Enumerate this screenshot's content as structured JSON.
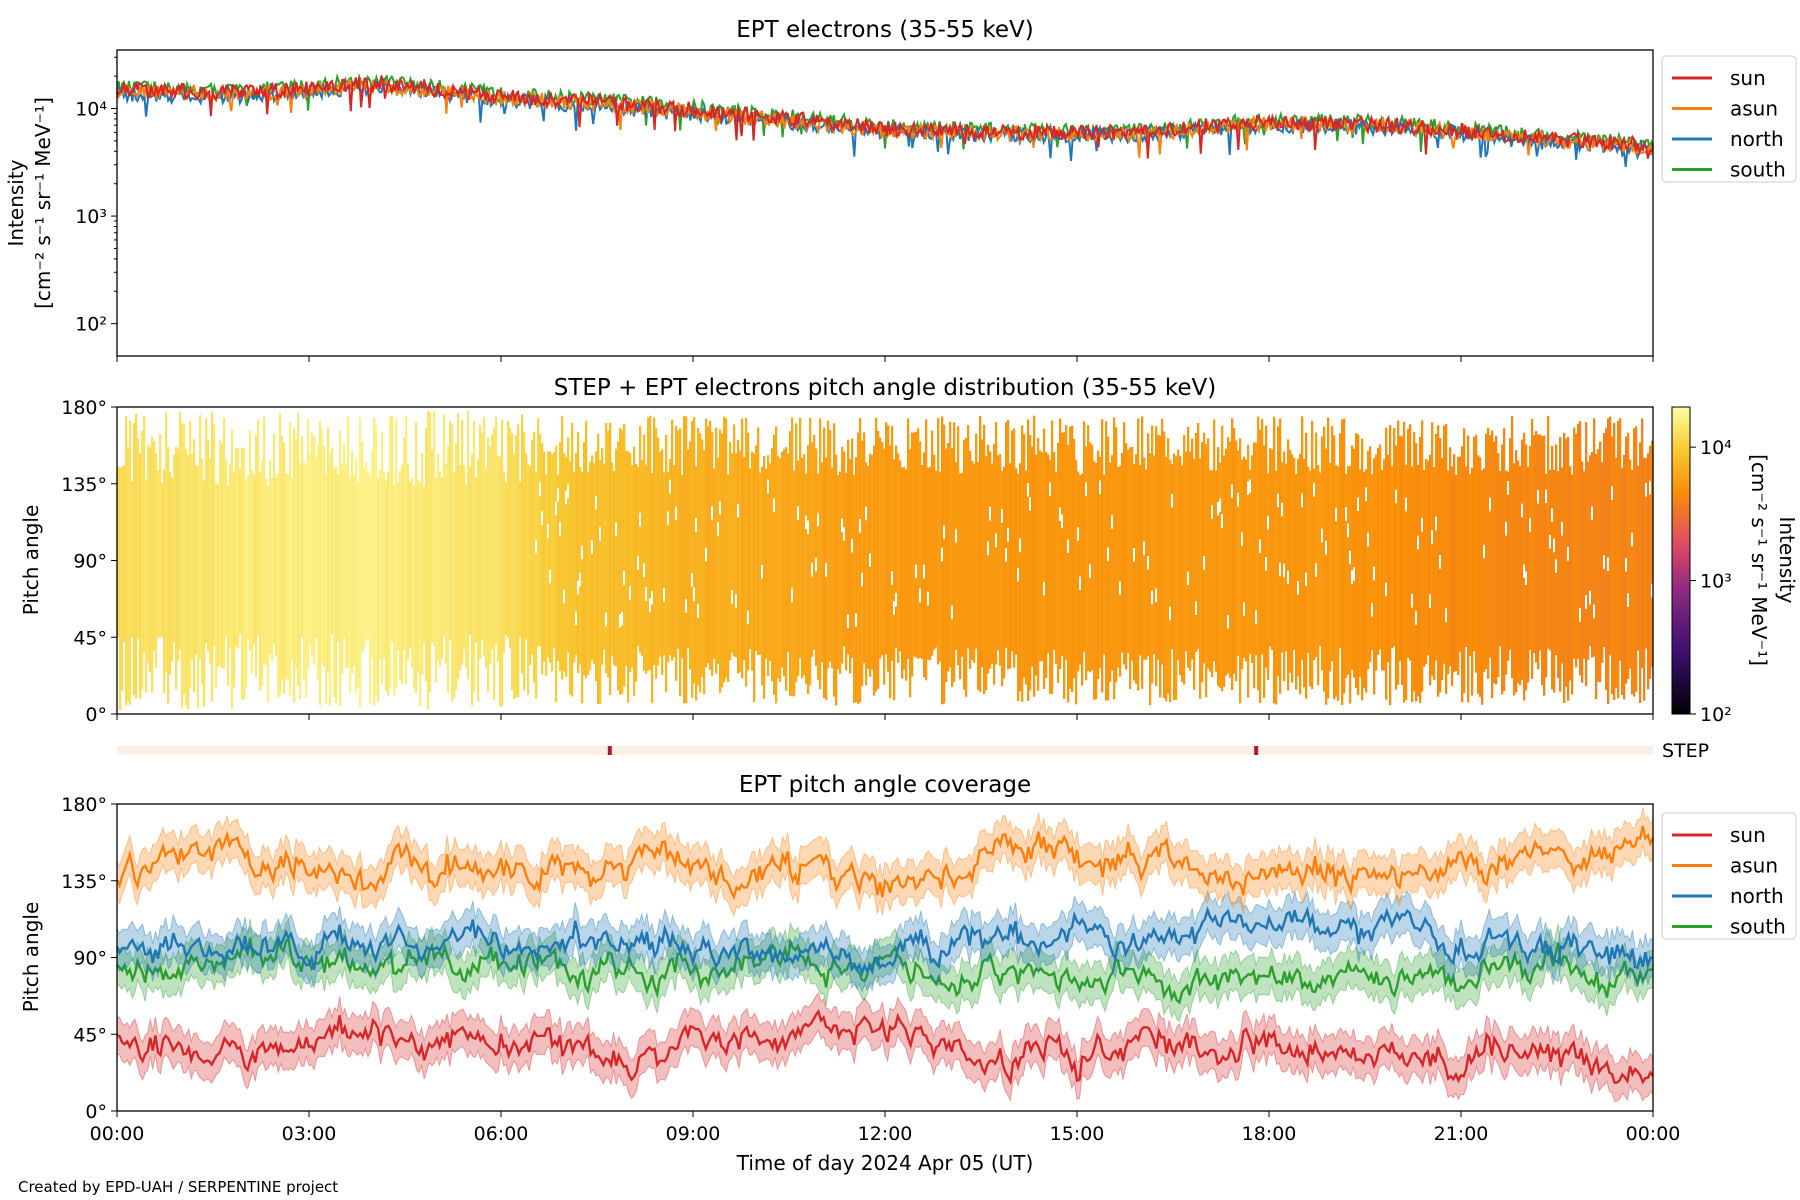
{
  "chart_data": [
    {
      "type": "line",
      "title": "EPT electrons (35-55 keV)",
      "ylabel": "Intensity",
      "ylabel_units": "[cm⁻² s⁻¹ sr⁻¹ MeV⁻¹]",
      "yscale": "log",
      "ylim": [
        50,
        35000
      ],
      "yticks": [
        "10²",
        "10³",
        "10⁴"
      ],
      "xlim_hours": [
        0,
        24
      ],
      "legend_position": "outside-right",
      "series": [
        {
          "name": "sun",
          "color": "#d62728",
          "x_hours": [
            0,
            2,
            4,
            6,
            8,
            10,
            12,
            14,
            16,
            18,
            20,
            22,
            24
          ],
          "values": [
            15000,
            14000,
            17000,
            13000,
            11000,
            8500,
            6500,
            6000,
            6000,
            7500,
            7000,
            5500,
            4500
          ]
        },
        {
          "name": "asun",
          "color": "#ff7f0e",
          "x_hours": [
            0,
            2,
            4,
            6,
            8,
            10,
            12,
            14,
            16,
            18,
            20,
            22,
            24
          ],
          "values": [
            14500,
            13500,
            16500,
            12500,
            10500,
            8000,
            6200,
            5800,
            5800,
            7200,
            6800,
            5300,
            4300
          ]
        },
        {
          "name": "north",
          "color": "#1f77b4",
          "x_hours": [
            0,
            2,
            4,
            6,
            8,
            10,
            12,
            14,
            16,
            18,
            20,
            22,
            24
          ],
          "values": [
            13500,
            13000,
            16000,
            12000,
            10000,
            7800,
            6000,
            5600,
            5700,
            7000,
            6600,
            5000,
            4000
          ]
        },
        {
          "name": "south",
          "color": "#2ca02c",
          "x_hours": [
            0,
            2,
            4,
            6,
            8,
            10,
            12,
            14,
            16,
            18,
            20,
            22,
            24
          ],
          "values": [
            15500,
            14500,
            18000,
            13500,
            11500,
            9000,
            6800,
            6200,
            6200,
            7800,
            7300,
            5700,
            4600
          ]
        }
      ]
    },
    {
      "type": "heatmap",
      "title": "STEP + EPT electrons pitch angle distribution (35-55 keV)",
      "ylabel": "Pitch angle",
      "yticks": [
        "0°",
        "45°",
        "90°",
        "135°",
        "180°"
      ],
      "ylim": [
        0,
        180
      ],
      "xlim_hours": [
        0,
        24
      ],
      "colorbar": {
        "label": "Intensity",
        "units": "[cm⁻² s⁻¹ sr⁻¹ MeV⁻¹]",
        "scale": "log",
        "range": [
          100,
          20000
        ],
        "ticks": [
          "10²",
          "10³",
          "10⁴"
        ]
      },
      "intensity_by_hour": {
        "x_hours": [
          0,
          2,
          4,
          6,
          7,
          9,
          11.5,
          14,
          17,
          19,
          21.5,
          24
        ],
        "values": [
          12000,
          15000,
          16000,
          13000,
          9000,
          7000,
          5500,
          5000,
          5200,
          5000,
          4200,
          4000
        ]
      }
    },
    {
      "type": "bar",
      "label": "STEP",
      "marker_hours": [
        7.7,
        17.8
      ]
    },
    {
      "type": "line",
      "title": "EPT pitch angle coverage",
      "ylabel": "Pitch angle",
      "yticks": [
        "0°",
        "45°",
        "90°",
        "135°",
        "180°"
      ],
      "ylim": [
        0,
        180
      ],
      "xlabel": "Time of day 2024 Apr 05 (UT)",
      "xticks": [
        "00:00",
        "03:00",
        "06:00",
        "09:00",
        "12:00",
        "15:00",
        "18:00",
        "21:00",
        "00:00"
      ],
      "xlim_hours": [
        0,
        24
      ],
      "legend_position": "outside-right",
      "series": [
        {
          "name": "sun",
          "color": "#d62728",
          "x_hours": [
            0,
            2,
            4,
            6,
            8,
            10,
            12,
            14,
            16,
            18,
            20,
            22,
            24
          ],
          "values": [
            40,
            35,
            45,
            40,
            35,
            40,
            50,
            30,
            35,
            40,
            35,
            35,
            20
          ]
        },
        {
          "name": "asun",
          "color": "#ff7f0e",
          "x_hours": [
            0,
            2,
            4,
            6,
            8,
            10,
            12,
            14,
            16,
            18,
            20,
            22,
            24
          ],
          "values": [
            140,
            145,
            135,
            140,
            145,
            140,
            130,
            150,
            145,
            140,
            145,
            145,
            160
          ]
        },
        {
          "name": "north",
          "color": "#1f77b4",
          "x_hours": [
            0,
            2,
            4,
            6,
            8,
            10,
            12,
            14,
            16,
            18,
            20,
            22,
            24
          ],
          "values": [
            100,
            95,
            100,
            95,
            100,
            95,
            90,
            105,
            100,
            110,
            105,
            95,
            95
          ]
        },
        {
          "name": "south",
          "color": "#2ca02c",
          "x_hours": [
            0,
            2,
            4,
            6,
            8,
            10,
            12,
            14,
            16,
            18,
            20,
            22,
            24
          ],
          "values": [
            80,
            85,
            80,
            85,
            80,
            85,
            90,
            75,
            80,
            70,
            75,
            85,
            80
          ]
        }
      ]
    }
  ],
  "footer": "Created by EPD-UAH / SERPENTINE project"
}
